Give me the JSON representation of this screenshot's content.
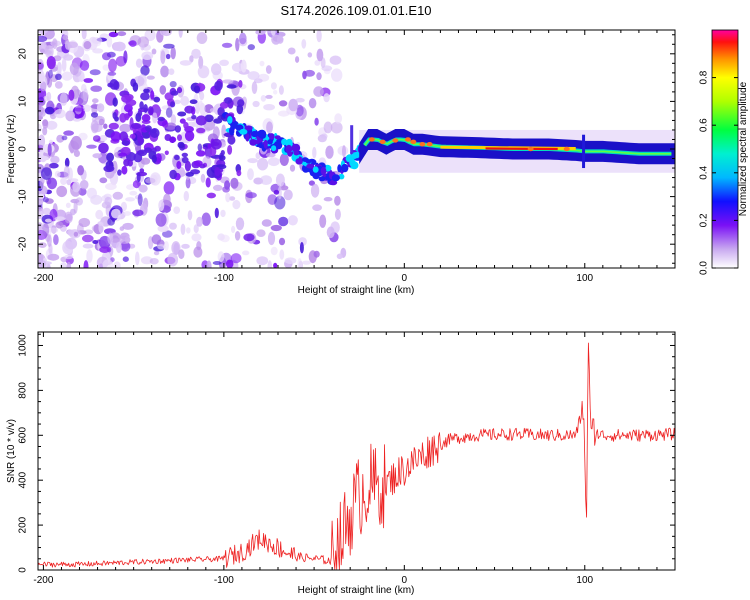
{
  "title": "S174.2026.109.01.01.E10",
  "chart_data": [
    {
      "type": "heatmap",
      "xlabel": "Height of straight line (km)",
      "ylabel": "Frequency (Hz)",
      "xlim": [
        -203,
        150
      ],
      "ylim": [
        -25,
        25
      ],
      "xticks": [
        -200,
        -100,
        0,
        100
      ],
      "xtick_labels": [
        "-200",
        "-100",
        "0",
        "100"
      ],
      "yticks": [
        20,
        10,
        0,
        -10,
        -20
      ],
      "ytick_labels": [
        "20",
        "10",
        "0",
        "-10",
        "-20"
      ],
      "colorbar": {
        "label": "Normalized spectral amplitude",
        "range": [
          0,
          1
        ],
        "ticks": [
          0.0,
          0.2,
          0.4,
          0.6,
          0.8
        ],
        "tick_labels": [
          "0.0",
          "0.2",
          "0.4",
          "0.6",
          "0.8"
        ]
      },
      "ridge_center_hz": {
        "x": [
          -100,
          -90,
          -80,
          -70,
          -60,
          -50,
          -40,
          -35,
          -30,
          -25,
          -20,
          -15,
          -10,
          -5,
          0,
          5,
          10,
          20,
          40,
          60,
          80,
          95,
          100,
          110,
          130,
          150
        ],
        "y": [
          6,
          4,
          2,
          1,
          -1,
          -4,
          -6,
          -5,
          -3,
          -1,
          2,
          2,
          1,
          2,
          2,
          1,
          1,
          0.5,
          0.3,
          0,
          0,
          -0.3,
          -0.5,
          -0.5,
          -1,
          -1
        ]
      },
      "high_amplitude_band": {
        "x_range": [
          20,
          95
        ],
        "frequency_hz": 0,
        "normalized_amplitude": 0.95
      }
    },
    {
      "type": "line",
      "xlabel": "Height of straight line (km)",
      "ylabel": "SNR (10 * v/v)",
      "xlim": [
        -203,
        150
      ],
      "ylim": [
        0,
        1060
      ],
      "xticks": [
        -200,
        -100,
        0,
        100
      ],
      "xtick_labels": [
        "-200",
        "-100",
        "0",
        "100"
      ],
      "yticks": [
        0,
        200,
        400,
        600,
        800,
        1000
      ],
      "ytick_labels": [
        "0",
        "200",
        "400",
        "600",
        "800",
        "1000"
      ],
      "series": [
        {
          "name": "SNR",
          "color": "#ee2222",
          "x": [
            -203,
            -180,
            -150,
            -120,
            -100,
            -90,
            -80,
            -70,
            -60,
            -50,
            -40,
            -35,
            -30,
            -25,
            -20,
            -15,
            -10,
            -5,
            0,
            5,
            10,
            15,
            20,
            25,
            30,
            40,
            60,
            80,
            95,
            99,
            101,
            102,
            103,
            104,
            106,
            110,
            130,
            150
          ],
          "values": [
            25,
            25,
            35,
            45,
            50,
            80,
            140,
            100,
            60,
            50,
            40,
            130,
            250,
            330,
            380,
            370,
            380,
            420,
            450,
            480,
            510,
            540,
            560,
            580,
            590,
            600,
            605,
            600,
            600,
            720,
            260,
            1060,
            650,
            600,
            610,
            600,
            600,
            605
          ]
        }
      ]
    }
  ],
  "colors": {
    "trace": "#ee2222"
  }
}
